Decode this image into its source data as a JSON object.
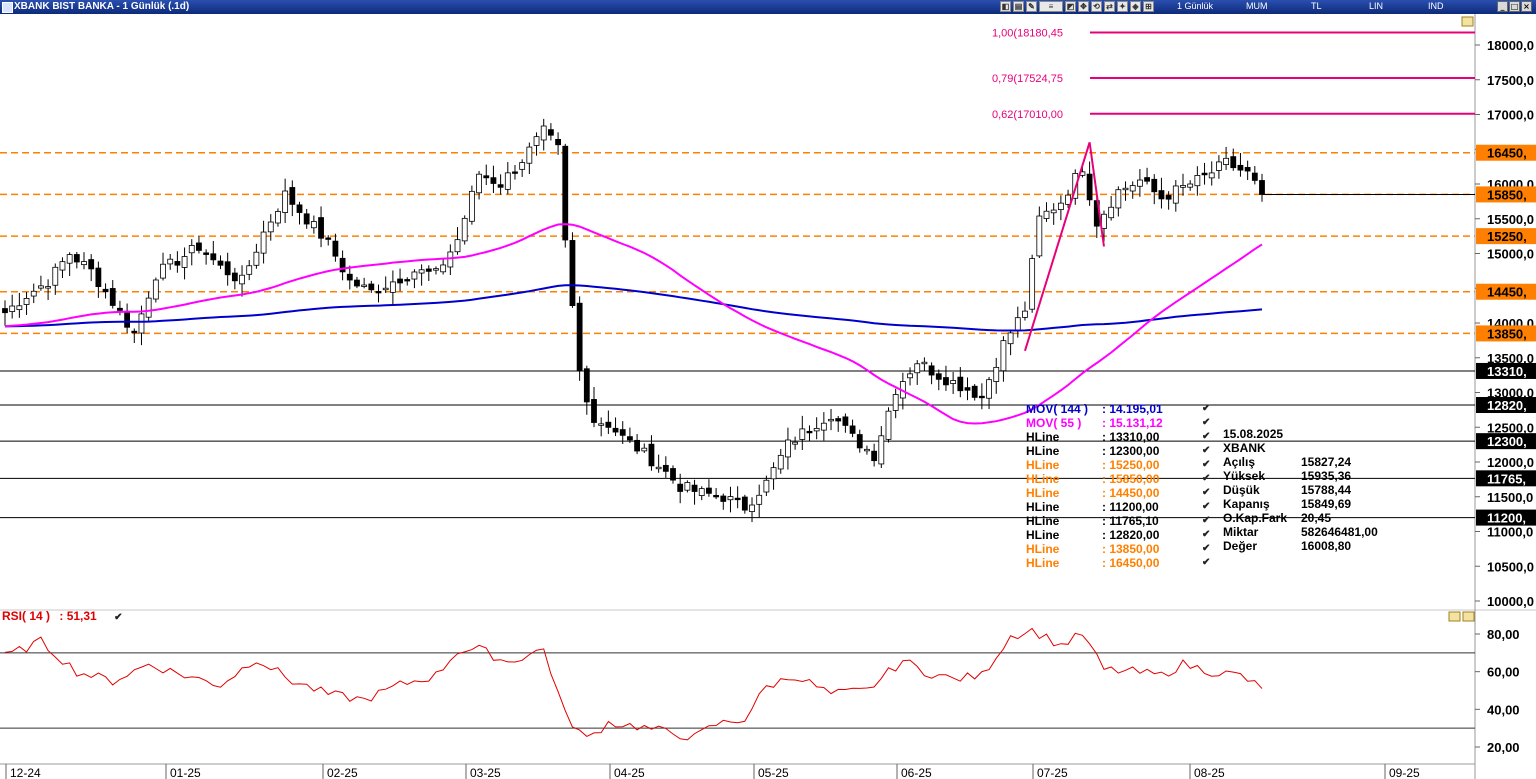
{
  "window": {
    "title": "XBANK BIST BANKA - 1 Günlük (.1d)",
    "menu": [
      "1 Günlük",
      "MUM",
      "TL",
      "LIN",
      "IND"
    ]
  },
  "colors": {
    "fib": "#e8007a",
    "hline_black": "#000000",
    "hline_orange": "#ff8000",
    "ma144": "#0000cc",
    "ma55": "#ff00ff",
    "rsi": "#e00000",
    "up_candle": "#ffffff",
    "down_candle": "#000000"
  },
  "fib_labels": [
    "1,00(18180,45",
    "0,79(17524,75",
    "0,62(17010,00"
  ],
  "price_tags": [
    "16450,",
    "15850,",
    "15250,",
    "14450,",
    "13850,",
    "13310,",
    "12820,",
    "12300,",
    "11765,",
    "11200,"
  ],
  "indicators": [
    {
      "name": "MOV( 144 )",
      "value": ": 14.195,01",
      "color": "#0000cc"
    },
    {
      "name": "MOV( 55 )",
      "value": ": 15.131,12",
      "color": "#ff00ff"
    },
    {
      "name": "HLine",
      "value": ": 13310,00",
      "color": "#000000"
    },
    {
      "name": "HLine",
      "value": ": 12300,00",
      "color": "#000000"
    },
    {
      "name": "HLine",
      "value": ": 15250,00",
      "color": "#ff8000"
    },
    {
      "name": "HLine",
      "value": ": 15850,00",
      "color": "#ff8000"
    },
    {
      "name": "HLine",
      "value": ": 14450,00",
      "color": "#ff8000"
    },
    {
      "name": "HLine",
      "value": ": 11200,00",
      "color": "#000000"
    },
    {
      "name": "HLine",
      "value": ": 11765,10",
      "color": "#000000"
    },
    {
      "name": "HLine",
      "value": ": 12820,00",
      "color": "#000000"
    },
    {
      "name": "HLine",
      "value": ": 13850,00",
      "color": "#ff8000"
    },
    {
      "name": "HLine",
      "value": ": 16450,00",
      "color": "#ff8000"
    }
  ],
  "ohlc_box": {
    "date": "15.08.2025",
    "symbol": "XBANK",
    "rows": [
      [
        "Açılış",
        "15827,24"
      ],
      [
        "Yüksek",
        "15935,36"
      ],
      [
        "Düşük",
        "15788,44"
      ],
      [
        "Kapanış",
        "15849,69"
      ],
      [
        "O.Kap.Fark",
        "20,45"
      ],
      [
        "Miktar",
        "582646481,00"
      ],
      [
        "Değer",
        "16008,80"
      ]
    ]
  },
  "rsi_legend": {
    "name": "RSI( 14 )",
    "value": ": 51,31"
  },
  "chart_data": {
    "type": "candlestick",
    "price_axis": {
      "ticks": [
        "18000,0",
        "17500,0",
        "17000,0",
        "16500,0",
        "16000,0",
        "15500,0",
        "15000,0",
        "14500,0",
        "14000,0",
        "13500,0",
        "13000,0",
        "12500,0",
        "12000,0",
        "11500,0",
        "11000,0",
        "10500,0",
        "10000,0"
      ],
      "ylim": [
        10000,
        18300
      ]
    },
    "rsi_axis": {
      "ticks": [
        "80,00",
        "60,00",
        "40,00",
        "20,00"
      ],
      "ylim": [
        13,
        87
      ],
      "levels": [
        70,
        30
      ]
    },
    "x_ticks": [
      "12-24",
      "01-25",
      "02-25",
      "03-25",
      "04-25",
      "05-25",
      "06-25",
      "07-25",
      "08-25",
      "09-25"
    ],
    "hlines": [
      16450,
      15850,
      15250,
      14450,
      13850,
      13310,
      12820,
      12300,
      11765.1,
      11200
    ],
    "fib_levels": [
      18180.45,
      17524.75,
      17010
    ],
    "fib_swing": [
      {
        "day": 142,
        "price": 13600
      },
      {
        "day": 151,
        "price": 16600
      }
    ],
    "moving_averages": [
      {
        "name": "MOV( 144 )",
        "last": 14195.01
      },
      {
        "name": "MOV( 55 )",
        "last": 15131.12
      }
    ],
    "last_price": 15849.69,
    "candle_anchors": [
      [
        0,
        14150
      ],
      [
        3,
        14400
      ],
      [
        6,
        14600
      ],
      [
        9,
        15000
      ],
      [
        12,
        14750
      ],
      [
        15,
        14300
      ],
      [
        18,
        13850
      ],
      [
        21,
        14700
      ],
      [
        24,
        14900
      ],
      [
        27,
        15100
      ],
      [
        30,
        14800
      ],
      [
        33,
        14600
      ],
      [
        36,
        15300
      ],
      [
        39,
        15850
      ],
      [
        42,
        15500
      ],
      [
        45,
        15150
      ],
      [
        48,
        14600
      ],
      [
        51,
        14450
      ],
      [
        54,
        14600
      ],
      [
        57,
        14750
      ],
      [
        60,
        14700
      ],
      [
        63,
        15200
      ],
      [
        66,
        16150
      ],
      [
        69,
        16000
      ],
      [
        72,
        16350
      ],
      [
        75,
        16750
      ],
      [
        77,
        16500
      ],
      [
        78,
        15150
      ],
      [
        80,
        13300
      ],
      [
        82,
        12600
      ],
      [
        84,
        12550
      ],
      [
        86,
        12350
      ],
      [
        88,
        12200
      ],
      [
        91,
        11950
      ],
      [
        94,
        11650
      ],
      [
        97,
        11550
      ],
      [
        100,
        11500
      ],
      [
        103,
        11350
      ],
      [
        106,
        11700
      ],
      [
        109,
        12250
      ],
      [
        112,
        12500
      ],
      [
        115,
        12700
      ],
      [
        118,
        12350
      ],
      [
        121,
        12100
      ],
      [
        124,
        13050
      ],
      [
        127,
        13450
      ],
      [
        130,
        13250
      ],
      [
        133,
        13100
      ],
      [
        136,
        12950
      ],
      [
        139,
        13700
      ],
      [
        142,
        14200
      ],
      [
        144,
        15500
      ],
      [
        147,
        15750
      ],
      [
        150,
        16250
      ],
      [
        152,
        15450
      ],
      [
        155,
        15900
      ],
      [
        158,
        16050
      ],
      [
        161,
        15800
      ],
      [
        164,
        15950
      ],
      [
        167,
        16100
      ],
      [
        170,
        16300
      ],
      [
        173,
        16150
      ],
      [
        175,
        15850
      ]
    ],
    "rsi_anchors": [
      [
        0,
        68
      ],
      [
        5,
        76
      ],
      [
        10,
        60
      ],
      [
        15,
        55
      ],
      [
        20,
        64
      ],
      [
        25,
        58
      ],
      [
        30,
        53
      ],
      [
        35,
        67
      ],
      [
        40,
        55
      ],
      [
        45,
        48
      ],
      [
        50,
        45
      ],
      [
        55,
        53
      ],
      [
        60,
        58
      ],
      [
        63,
        71
      ],
      [
        66,
        72
      ],
      [
        70,
        65
      ],
      [
        75,
        72
      ],
      [
        78,
        37
      ],
      [
        81,
        24
      ],
      [
        84,
        33
      ],
      [
        88,
        31
      ],
      [
        92,
        28
      ],
      [
        96,
        25
      ],
      [
        99,
        32
      ],
      [
        103,
        35
      ],
      [
        106,
        52
      ],
      [
        110,
        58
      ],
      [
        115,
        48
      ],
      [
        120,
        50
      ],
      [
        125,
        66
      ],
      [
        128,
        60
      ],
      [
        132,
        56
      ],
      [
        136,
        58
      ],
      [
        140,
        79
      ],
      [
        143,
        82
      ],
      [
        147,
        74
      ],
      [
        150,
        80
      ],
      [
        153,
        61
      ],
      [
        157,
        60
      ],
      [
        161,
        58
      ],
      [
        164,
        64
      ],
      [
        168,
        60
      ],
      [
        172,
        58
      ],
      [
        175,
        51
      ]
    ]
  }
}
